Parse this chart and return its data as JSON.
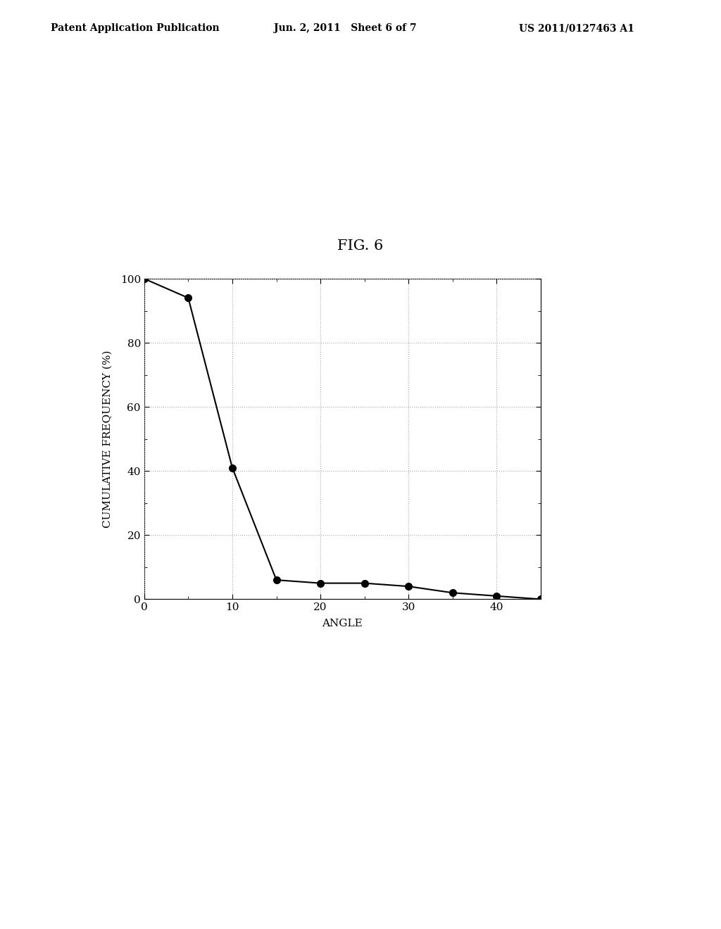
{
  "title": "FIG. 6",
  "xlabel": "ANGLE",
  "ylabel": "CUMULATIVE FREQUENCY (%)",
  "x_data": [
    0,
    5,
    10,
    15,
    20,
    25,
    30,
    35,
    40,
    45
  ],
  "y_data": [
    100,
    94,
    41,
    6,
    5,
    5,
    4,
    2,
    1,
    0
  ],
  "xlim": [
    0,
    45
  ],
  "ylim": [
    0,
    100
  ],
  "xticks": [
    0,
    10,
    20,
    30,
    40
  ],
  "yticks": [
    0,
    20,
    40,
    60,
    80,
    100
  ],
  "header_left": "Patent Application Publication",
  "header_center": "Jun. 2, 2011   Sheet 6 of 7",
  "header_right": "US 2011/0127463 A1",
  "background_color": "#ffffff",
  "line_color": "#000000",
  "marker_color": "#000000",
  "grid_color": "#aaaaaa",
  "text_color": "#000000",
  "title_fontsize": 15,
  "axis_label_fontsize": 11,
  "tick_fontsize": 11,
  "header_fontsize": 10
}
